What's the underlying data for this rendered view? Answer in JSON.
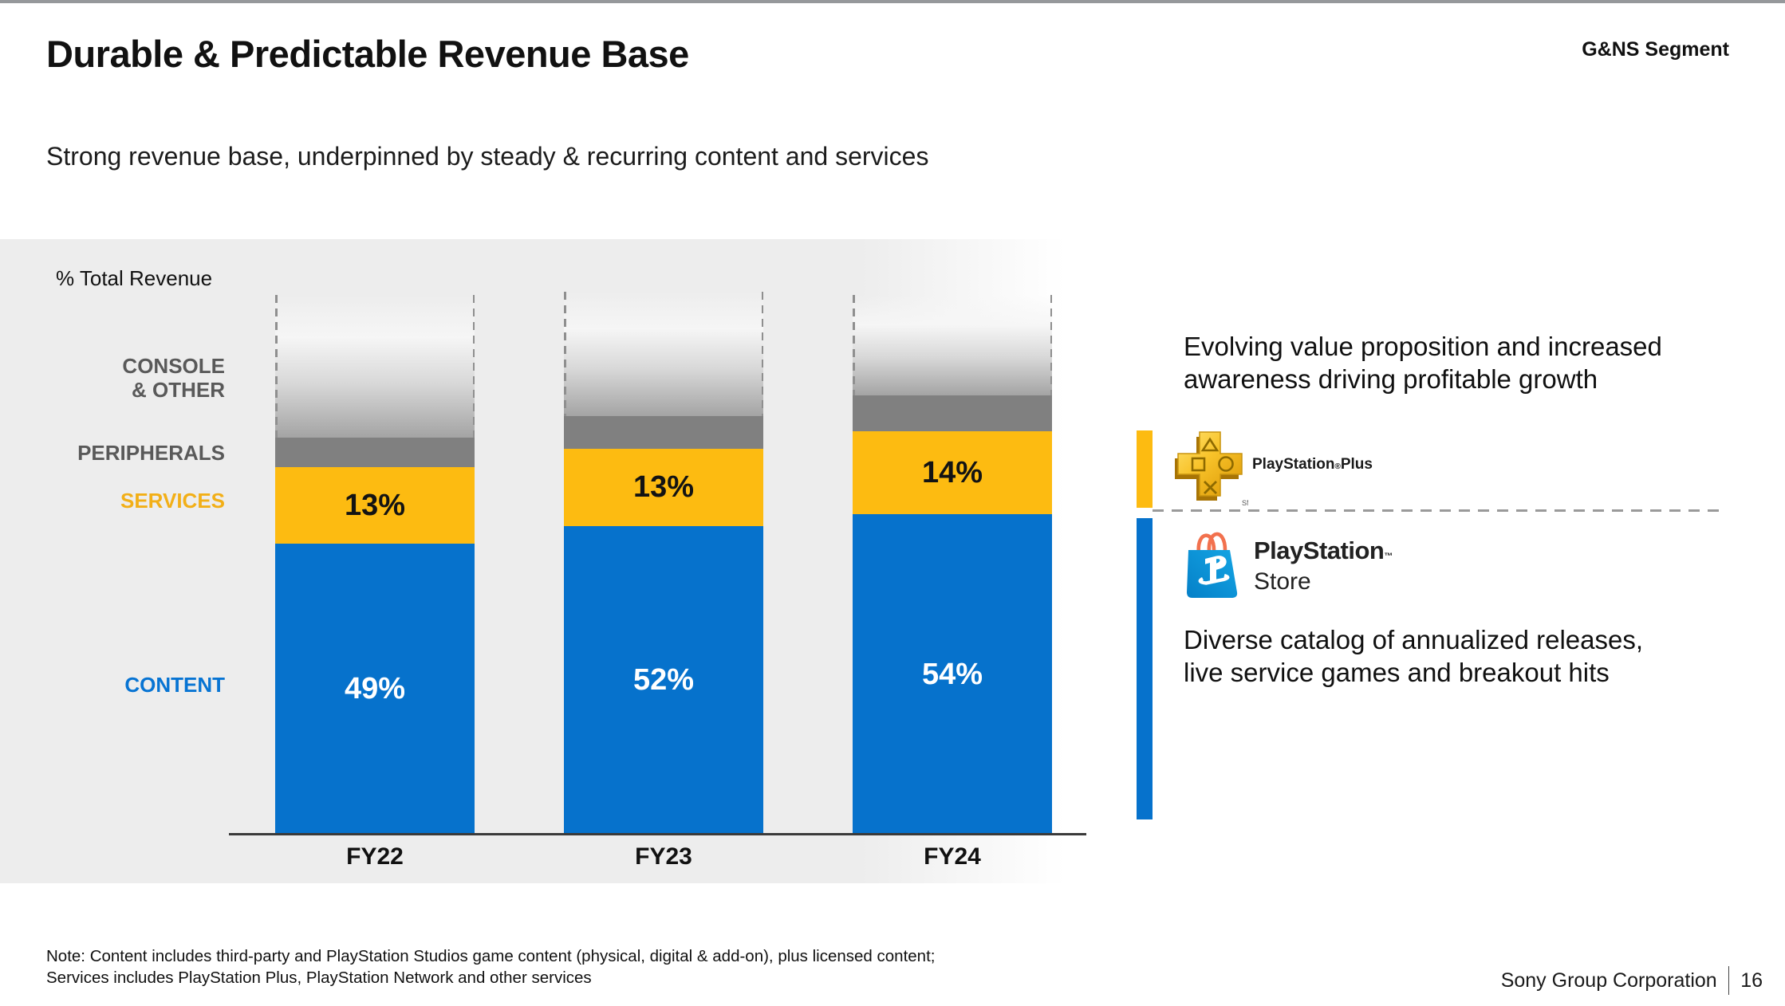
{
  "top": {
    "title": "Durable & Predictable Revenue Base",
    "segment": "G&NS Segment",
    "subtitle": "Strong revenue base, underpinned by steady & recurring content and services"
  },
  "chart_data": {
    "type": "bar",
    "stacked": true,
    "unit": "%",
    "axis_title": "% Total Revenue",
    "categories": [
      "FY22",
      "FY23",
      "FY24"
    ],
    "series": [
      {
        "name": "CONTENT",
        "values": [
          49,
          52,
          54
        ],
        "labels": [
          "49%",
          "52%",
          "54%"
        ],
        "color": "#0672CC",
        "label_text_color": "#FFFFFF",
        "name_color": "#0774D3",
        "estimated": false
      },
      {
        "name": "SERVICES",
        "values": [
          13,
          13,
          14
        ],
        "labels": [
          "13%",
          "13%",
          "14%"
        ],
        "color": "#FDBB11",
        "label_text_color": "#131313",
        "name_color": "#F2AF17",
        "estimated": false
      },
      {
        "name": "PERIPHERALS",
        "values": [
          5,
          5.5,
          6
        ],
        "labels": [
          "",
          "",
          ""
        ],
        "color": "#808080",
        "label_text_color": "",
        "name_color": "#595959",
        "estimated": true
      },
      {
        "name": "CONSOLE & OTHER",
        "values": [
          24,
          21,
          17
        ],
        "labels": [
          "",
          "",
          ""
        ],
        "color": "fade-gradient-open-top",
        "style": "dashed",
        "label_text_color": "",
        "name_color": "#595959",
        "estimated": true
      }
    ],
    "grid": false,
    "legend_position": "left-category-labels"
  },
  "right_panel": {
    "point1_line1": "Evolving value proposition and increased",
    "point1_line2": "awareness driving profitable growth",
    "psplus": {
      "name": "PlayStation",
      "reg": "®",
      "plus": "Plus",
      "sm": "SM"
    },
    "psstore": {
      "name": "PlayStation",
      "tm": "™",
      "store": "Store"
    },
    "point2_line1": "Diverse catalog of annualized releases,",
    "point2_line2": "live service games and breakout hits",
    "accent_yellow": "#FDBB11",
    "accent_blue": "#0672CC"
  },
  "footnote": {
    "line1": "Note: Content includes third-party and PlayStation Studios game content (physical, digital & add-on), plus licensed content;",
    "line2": "Services includes PlayStation Plus, PlayStation Network and other services"
  },
  "footer": {
    "company": "Sony Group Corporation",
    "page": "16"
  }
}
